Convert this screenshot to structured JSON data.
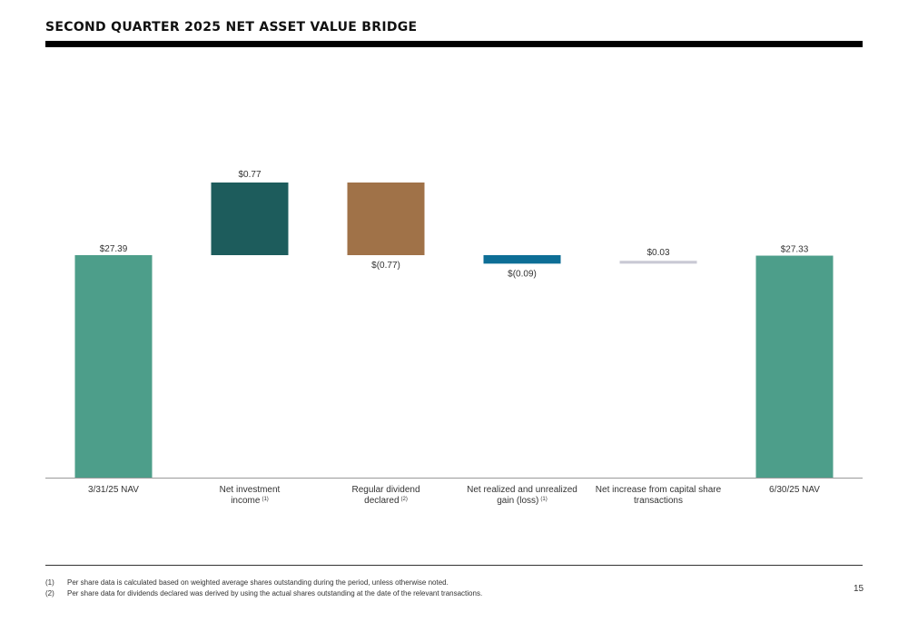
{
  "page": {
    "title": "SECOND QUARTER 2025 NET ASSET VALUE BRIDGE",
    "page_number": "15"
  },
  "footnotes": [
    {
      "marker": "(1)",
      "text": "Per share data is calculated based on weighted average shares outstanding during the period, unless otherwise noted."
    },
    {
      "marker": "(2)",
      "text": "Per share data for dividends declared was derived by using the actual shares outstanding at the date of the relevant transactions."
    }
  ],
  "chart_data": {
    "type": "bar",
    "subtype": "waterfall",
    "title": "SECOND QUARTER 2025 NET ASSET VALUE BRIDGE",
    "categories": [
      {
        "label_lines": [
          "3/31/25 NAV"
        ],
        "sup": ""
      },
      {
        "label_lines": [
          "Net investment",
          "income"
        ],
        "sup": "(1)"
      },
      {
        "label_lines": [
          "Regular dividend",
          "declared"
        ],
        "sup": "(2)"
      },
      {
        "label_lines": [
          "Net realized and unrealized",
          "gain (loss)"
        ],
        "sup": "(1)"
      },
      {
        "label_lines": [
          "Net increase from capital share",
          "transactions"
        ],
        "sup": ""
      },
      {
        "label_lines": [
          "6/30/25 NAV"
        ],
        "sup": ""
      }
    ],
    "values": [
      27.39,
      0.77,
      -0.77,
      -0.09,
      0.03,
      27.33
    ],
    "kinds": [
      "total",
      "delta",
      "delta",
      "delta",
      "delta",
      "total"
    ],
    "data_labels": [
      "$27.39",
      "$0.77",
      "$(0.77)",
      "$(0.09)",
      "$0.03",
      "$27.33"
    ],
    "colors": [
      "#4d9e8a",
      "#1d5c5c",
      "#a07248",
      "#0d6e96",
      "#c9c9d4",
      "#4d9e8a"
    ],
    "ylim": [
      0,
      28.2
    ],
    "grid": false,
    "legend": "none",
    "xlabel": "",
    "ylabel": ""
  }
}
